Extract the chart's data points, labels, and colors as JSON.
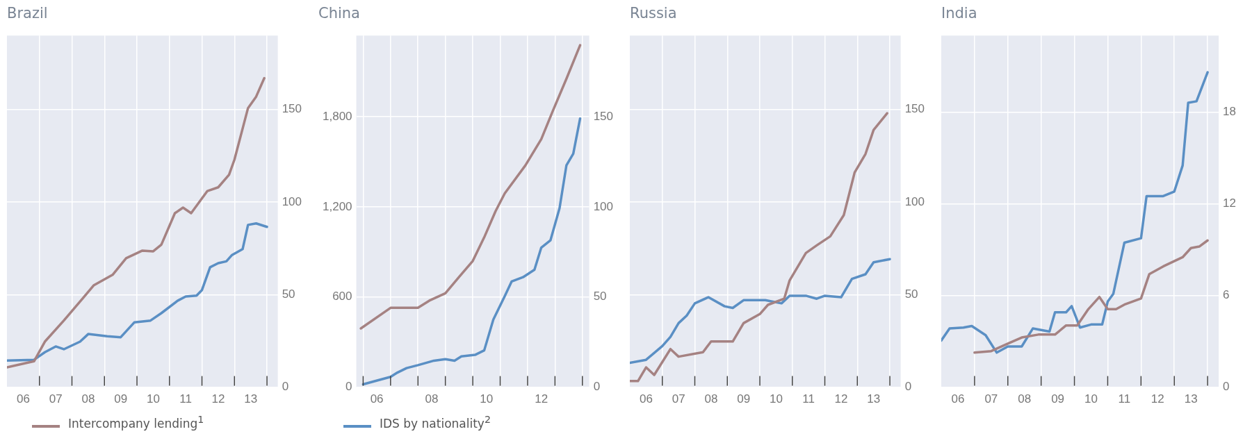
{
  "chart_data": [
    {
      "type": "line",
      "title": "Brazil",
      "legend": "bottom left",
      "grid": true,
      "marker": "none",
      "line_style": "solid",
      "xlim": [
        "2006-01",
        "2014-05"
      ],
      "ylim": [
        0,
        190
      ],
      "yticks": [
        0,
        50,
        100,
        150
      ],
      "xticks": [
        {
          "value": "2006-07",
          "label": "06"
        },
        {
          "value": "2007-01",
          "label": null
        },
        {
          "value": "2007-07",
          "label": "07"
        },
        {
          "value": "2008-01",
          "label": null
        },
        {
          "value": "2008-07",
          "label": "08"
        },
        {
          "value": "2009-01",
          "label": null
        },
        {
          "value": "2009-07",
          "label": "09"
        },
        {
          "value": "2010-01",
          "label": null
        },
        {
          "value": "2010-07",
          "label": "10"
        },
        {
          "value": "2011-01",
          "label": null
        },
        {
          "value": "2011-07",
          "label": "11"
        },
        {
          "value": "2012-01",
          "label": null
        },
        {
          "value": "2012-07",
          "label": "12"
        },
        {
          "value": "2013-01",
          "label": null
        },
        {
          "value": "2013-07",
          "label": "13"
        },
        {
          "value": "2014-01",
          "label": null
        }
      ],
      "series": [
        {
          "name": "Intercompany lending$^{1}$",
          "color": "#a58282",
          "x": [
            "2006-01",
            "2006-11",
            "2007-03",
            "2007-10",
            "2008-05",
            "2008-09",
            "2009-04",
            "2009-09",
            "2010-03",
            "2010-07",
            "2010-10",
            "2011-03",
            "2011-06",
            "2011-09",
            "2012-03",
            "2012-07",
            "2012-11",
            "2013-01",
            "2013-06",
            "2013-09",
            "2013-12"
          ],
          "values": [
            10.7,
            14,
            24.6,
            36,
            48,
            55,
            60.7,
            69.7,
            73.8,
            73.4,
            77,
            94,
            97,
            94,
            106,
            108,
            114.8,
            123,
            150.8,
            157,
            167
          ]
        },
        {
          "color": "#5a8fc4",
          "x": [
            "2006-01",
            "2006-11",
            "2007-03",
            "2007-07",
            "2007-10",
            "2008-04",
            "2008-07",
            "2009-02",
            "2009-07",
            "2009-12",
            "2010-06",
            "2010-10",
            "2011-04",
            "2011-07",
            "2011-11",
            "2012-01",
            "2012-04",
            "2012-07",
            "2012-10",
            "2012-12",
            "2013-04",
            "2013-06",
            "2013-09",
            "2014-01"
          ],
          "values": [
            14.4,
            14.8,
            18.9,
            22,
            20.5,
            24.6,
            28.7,
            27.5,
            27,
            35,
            36,
            40,
            46.7,
            49,
            49.5,
            52.5,
            64.8,
            67,
            68,
            71.3,
            74.6,
            87.7,
            88.5,
            86.6
          ]
        }
      ]
    },
    {
      "type": "line",
      "title": "China",
      "legend": "bottom left",
      "grid": true,
      "marker": "none",
      "line_style": "solid",
      "xlim": [
        "2005-10",
        "2014-04"
      ],
      "ylim": [
        0,
        2340
      ],
      "yticks": [
        0,
        600,
        {
          "value": 1200,
          "label": "1,200"
        },
        {
          "value": 1800,
          "label": "1,800"
        }
      ],
      "y2lim": [
        0,
        195
      ],
      "y2ticks": [
        0,
        50,
        100,
        150
      ],
      "xticks": [
        {
          "value": "2006-01",
          "label": null
        },
        {
          "value": "2006-07",
          "label": "06"
        },
        {
          "value": "2007-01",
          "label": null
        },
        {
          "value": "2008-01",
          "label": null
        },
        {
          "value": "2008-07",
          "label": "08"
        },
        {
          "value": "2009-01",
          "label": null
        },
        {
          "value": "2010-01",
          "label": null
        },
        {
          "value": "2010-07",
          "label": "10"
        },
        {
          "value": "2011-01",
          "label": null
        },
        {
          "value": "2012-01",
          "label": null
        },
        {
          "value": "2012-07",
          "label": "12"
        },
        {
          "value": "2013-01",
          "label": null
        },
        {
          "value": "2014-01",
          "label": null
        }
      ],
      "series": [
        {
          "color": "#a58282",
          "axis": "y",
          "x": [
            "2005-12",
            "2007-01",
            "2008-01",
            "2008-06",
            "2009-01",
            "2009-07",
            "2010-01",
            "2010-06",
            "2010-11",
            "2011-03",
            "2011-12",
            "2012-07",
            "2012-12",
            "2013-06",
            "2013-12"
          ],
          "values": [
            391,
            528,
            528,
            576,
            625,
            733,
            840,
            997,
            1172,
            1290,
            1475,
            1651,
            1837,
            2052,
            2276
          ]
        },
        {
          "name": "IDS by nationality$^{2}$",
          "color": "#5a8fc4",
          "axis": "y2",
          "x": [
            "2006-01",
            "2006-06",
            "2007-01",
            "2007-04",
            "2007-08",
            "2008-01",
            "2008-08",
            "2009-01",
            "2009-05",
            "2009-08",
            "2010-02",
            "2010-06",
            "2010-10",
            "2011-03",
            "2011-06",
            "2011-11",
            "2012-04",
            "2012-07",
            "2012-11",
            "2013-03",
            "2013-06",
            "2013-09",
            "2013-12"
          ],
          "values": [
            1.6,
            3.3,
            5.7,
            8.1,
            10.6,
            12.2,
            14.7,
            15.5,
            14.7,
            17.1,
            17.9,
            20.4,
            37.5,
            50.5,
            58.6,
            61,
            65.1,
            77.4,
            81.4,
            99.3,
            123,
            129.5,
            149
          ]
        }
      ]
    },
    {
      "type": "line",
      "title": "Russia",
      "grid": true,
      "marker": "none",
      "line_style": "solid",
      "xlim": [
        "2006-01",
        "2014-05"
      ],
      "ylim": [
        0,
        190
      ],
      "yticks": [
        0,
        50,
        100,
        150
      ],
      "xticks": [
        {
          "value": "2006-07",
          "label": "06"
        },
        {
          "value": "2007-01",
          "label": null
        },
        {
          "value": "2007-07",
          "label": "07"
        },
        {
          "value": "2008-01",
          "label": null
        },
        {
          "value": "2008-07",
          "label": "08"
        },
        {
          "value": "2009-01",
          "label": null
        },
        {
          "value": "2009-07",
          "label": "09"
        },
        {
          "value": "2010-01",
          "label": null
        },
        {
          "value": "2010-07",
          "label": "10"
        },
        {
          "value": "2011-01",
          "label": null
        },
        {
          "value": "2011-07",
          "label": "11"
        },
        {
          "value": "2012-01",
          "label": null
        },
        {
          "value": "2012-07",
          "label": "12"
        },
        {
          "value": "2013-01",
          "label": null
        },
        {
          "value": "2013-07",
          "label": "13"
        },
        {
          "value": "2014-01",
          "label": null
        }
      ],
      "series": [
        {
          "color": "#a58282",
          "x": [
            "2006-01",
            "2006-04",
            "2006-07",
            "2006-10",
            "2007-04",
            "2007-07",
            "2008-04",
            "2008-07",
            "2009-03",
            "2009-07",
            "2010-01",
            "2010-04",
            "2010-10",
            "2010-12",
            "2011-06",
            "2011-10",
            "2012-03",
            "2012-08",
            "2012-12",
            "2013-04",
            "2013-07",
            "2013-12"
          ],
          "values": [
            3.3,
            3.3,
            10.7,
            6.6,
            20.6,
            16.5,
            18.9,
            24.7,
            24.7,
            34.6,
            39.5,
            44.5,
            47.8,
            57.7,
            72.5,
            76.6,
            81.5,
            93,
            116,
            126,
            139,
            148
          ]
        },
        {
          "color": "#5a8fc4",
          "x": [
            "2006-01",
            "2006-07",
            "2007-01",
            "2007-04",
            "2007-07",
            "2007-10",
            "2008-01",
            "2008-06",
            "2008-12",
            "2009-03",
            "2009-07",
            "2010-03",
            "2010-09",
            "2010-12",
            "2011-06",
            "2011-10",
            "2012-01",
            "2012-07",
            "2012-11",
            "2013-04",
            "2013-07",
            "2014-01"
          ],
          "values": [
            13.2,
            14.8,
            22.2,
            27.2,
            34.6,
            38.7,
            45.3,
            48.6,
            43.7,
            42.8,
            47,
            47,
            45.3,
            49.4,
            49.4,
            47.8,
            49.4,
            48.6,
            58.5,
            61,
            67.5,
            69.2
          ]
        }
      ]
    },
    {
      "type": "line",
      "title": "India",
      "grid": true,
      "marker": "none",
      "line_style": "solid",
      "xlim": [
        "2006-01",
        "2014-05"
      ],
      "ylim": [
        0,
        23
      ],
      "yticks": [
        0,
        6,
        12,
        18
      ],
      "xticks": [
        {
          "value": "2006-07",
          "label": "06"
        },
        {
          "value": "2007-01",
          "label": null
        },
        {
          "value": "2007-07",
          "label": "07"
        },
        {
          "value": "2008-01",
          "label": null
        },
        {
          "value": "2008-07",
          "label": "08"
        },
        {
          "value": "2009-01",
          "label": null
        },
        {
          "value": "2009-07",
          "label": "09"
        },
        {
          "value": "2010-01",
          "label": null
        },
        {
          "value": "2010-07",
          "label": "10"
        },
        {
          "value": "2011-01",
          "label": null
        },
        {
          "value": "2011-07",
          "label": "11"
        },
        {
          "value": "2012-01",
          "label": null
        },
        {
          "value": "2012-07",
          "label": "12"
        },
        {
          "value": "2013-01",
          "label": null
        },
        {
          "value": "2013-07",
          "label": "13"
        },
        {
          "value": "2014-01",
          "label": null
        }
      ],
      "series": [
        {
          "color": "#a58282",
          "x": [
            "2007-01",
            "2007-07",
            "2008-01",
            "2008-06",
            "2008-12",
            "2009-06",
            "2009-10",
            "2010-02",
            "2010-06",
            "2010-10",
            "2011-01",
            "2011-04",
            "2011-07",
            "2012-01",
            "2012-04",
            "2012-09",
            "2013-04",
            "2013-07",
            "2013-10",
            "2014-01"
          ],
          "values": [
            2.26,
            2.36,
            2.85,
            3.25,
            3.44,
            3.44,
            4.04,
            4.04,
            5.1,
            5.9,
            5.1,
            5.1,
            5.4,
            5.8,
            7.4,
            7.9,
            8.5,
            9.1,
            9.2,
            9.6
          ]
        },
        {
          "color": "#5a8fc4",
          "x": [
            "2006-01",
            "2006-04",
            "2006-09",
            "2006-12",
            "2007-05",
            "2007-09",
            "2008-01",
            "2008-06",
            "2008-10",
            "2009-01",
            "2009-04",
            "2009-06",
            "2009-10",
            "2009-12",
            "2010-03",
            "2010-07",
            "2010-11",
            "2011-01",
            "2011-03",
            "2011-07",
            "2012-01",
            "2012-03",
            "2012-09",
            "2013-01",
            "2013-04",
            "2013-06",
            "2013-09",
            "2014-01"
          ],
          "values": [
            3.05,
            3.84,
            3.9,
            4,
            3.4,
            2.26,
            2.66,
            2.66,
            3.84,
            3.74,
            3.64,
            4.9,
            4.9,
            5.3,
            3.9,
            4.1,
            4.1,
            5.6,
            6.1,
            9.45,
            9.74,
            12.5,
            12.5,
            12.8,
            14.5,
            18.6,
            18.7,
            20.6
          ]
        }
      ]
    }
  ]
}
